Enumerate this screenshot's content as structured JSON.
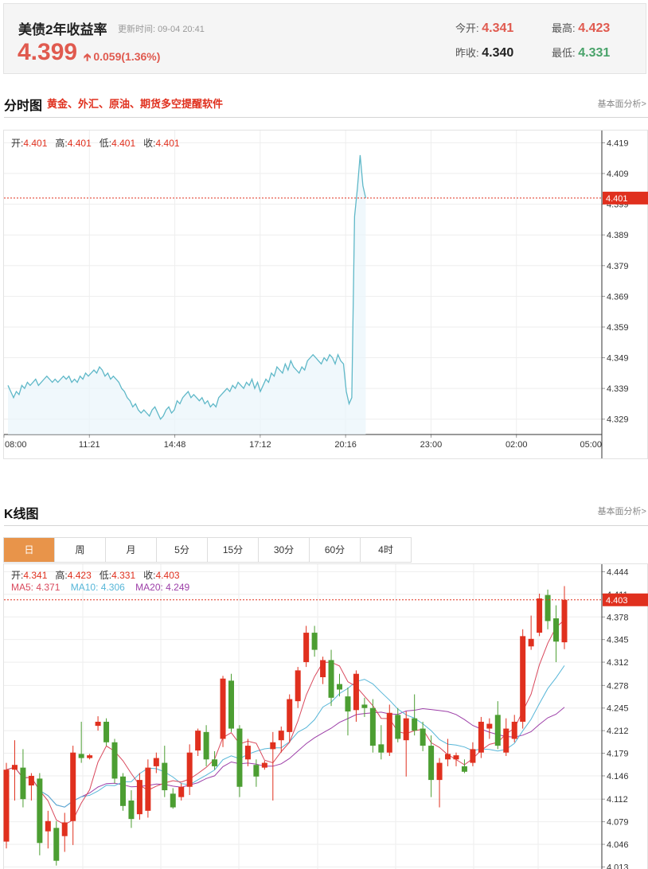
{
  "quote": {
    "name": "美债2年收益率",
    "update_label": "更新时间:",
    "update_time": "09-04 20:41",
    "price": "4.399",
    "change": "0.059(1.36%)",
    "today_open_label": "今开:",
    "today_open": "4.341",
    "high_label": "最高:",
    "high": "4.423",
    "prev_close_label": "昨收:",
    "prev_close": "4.340",
    "low_label": "最低:",
    "low": "4.331",
    "colors": {
      "up": "#e05a4f",
      "down": "#49a36a"
    }
  },
  "intraday": {
    "title": "分时图",
    "promo": "黄金、外汇、原油、期货多空提醒软件",
    "link": "基本面分析>",
    "ohlc": {
      "open_label": "开:",
      "open": "4.401",
      "high_label": "高:",
      "high": "4.401",
      "low_label": "低:",
      "low": "4.401",
      "close_label": "收:",
      "close": "4.401"
    }
  },
  "kline": {
    "title": "K线图",
    "link": "基本面分析>",
    "tabs": [
      "日",
      "周",
      "月",
      "5分",
      "15分",
      "30分",
      "60分",
      "4时"
    ],
    "active_tab": 0,
    "ohlc": {
      "open_label": "开:",
      "open": "4.341",
      "high_label": "高:",
      "high": "4.423",
      "low_label": "低:",
      "low": "4.331",
      "close_label": "收:",
      "close": "4.403"
    },
    "ma": {
      "ma5_label": "MA5:",
      "ma5": "4.371",
      "ma10_label": "MA10:",
      "ma10": "4.306",
      "ma20_label": "MA20:",
      "ma20": "4.249"
    }
  },
  "chart_data": [
    {
      "type": "line",
      "name": "intraday",
      "ylim": [
        4.324,
        4.423
      ],
      "yticks": [
        "4.419",
        "4.409",
        "4.399",
        "4.389",
        "4.379",
        "4.369",
        "4.359",
        "4.349",
        "4.339",
        "4.329"
      ],
      "yticks_values": [
        4.419,
        4.409,
        4.399,
        4.389,
        4.379,
        4.369,
        4.359,
        4.349,
        4.339,
        4.329
      ],
      "xticks": [
        "08:00",
        "11:21",
        "14:48",
        "17:12",
        "20:16",
        "23:00",
        "02:00",
        "05:00"
      ],
      "current_value": 4.401,
      "current_label": "4.401",
      "line_color": "#5fb8c8",
      "values": [
        4.34,
        4.338,
        4.336,
        4.338,
        4.337,
        4.34,
        4.339,
        4.341,
        4.34,
        4.341,
        4.342,
        4.34,
        4.341,
        4.342,
        4.343,
        4.342,
        4.341,
        4.342,
        4.341,
        4.342,
        4.343,
        4.342,
        4.343,
        4.341,
        4.342,
        4.341,
        4.343,
        4.342,
        4.344,
        4.343,
        4.344,
        4.345,
        4.344,
        4.346,
        4.345,
        4.343,
        4.344,
        4.342,
        4.343,
        4.342,
        4.341,
        4.339,
        4.338,
        4.336,
        4.335,
        4.333,
        4.334,
        4.332,
        4.331,
        4.332,
        4.331,
        4.33,
        4.332,
        4.333,
        4.331,
        4.329,
        4.33,
        4.332,
        4.333,
        4.331,
        4.332,
        4.335,
        4.334,
        4.336,
        4.337,
        4.338,
        4.336,
        4.337,
        4.336,
        4.335,
        4.336,
        4.334,
        4.335,
        4.333,
        4.334,
        4.333,
        4.336,
        4.337,
        4.338,
        4.339,
        4.338,
        4.34,
        4.339,
        4.341,
        4.34,
        4.339,
        4.341,
        4.34,
        4.342,
        4.339,
        4.341,
        4.338,
        4.34,
        4.342,
        4.341,
        4.344,
        4.343,
        4.346,
        4.345,
        4.344,
        4.347,
        4.345,
        4.348,
        4.346,
        4.345,
        4.344,
        4.346,
        4.345,
        4.348,
        4.349,
        4.35,
        4.349,
        4.348,
        4.347,
        4.349,
        4.348,
        4.35,
        4.349,
        4.347,
        4.35,
        4.348,
        4.347,
        4.338,
        4.334,
        4.336,
        4.395,
        4.404,
        4.415,
        4.405,
        4.401
      ],
      "x_fraction_span": [
        0.0,
        0.605
      ]
    },
    {
      "type": "candlestick",
      "name": "kline-daily",
      "ylim": [
        4.01,
        4.455
      ],
      "yticks": [
        "4.444",
        "4.411",
        "4.378",
        "4.345",
        "4.312",
        "4.278",
        "4.245",
        "4.212",
        "4.179",
        "4.146",
        "4.112",
        "4.079",
        "4.046",
        "4.013"
      ],
      "yticks_values": [
        4.444,
        4.411,
        4.378,
        4.345,
        4.312,
        4.278,
        4.245,
        4.212,
        4.179,
        4.146,
        4.112,
        4.079,
        4.046,
        4.013
      ],
      "current_value": 4.403,
      "current_label": "4.403",
      "ma_colors": {
        "ma5": "#d9485c",
        "ma10": "#57b6d8",
        "ma20": "#9d3fa8"
      },
      "candles": [
        {
          "o": 4.05,
          "h": 4.165,
          "l": 4.04,
          "c": 4.155
        },
        {
          "o": 4.155,
          "h": 4.198,
          "l": 4.11,
          "c": 4.162
        },
        {
          "o": 4.158,
          "h": 4.185,
          "l": 4.1,
          "c": 4.112
        },
        {
          "o": 4.132,
          "h": 4.15,
          "l": 4.11,
          "c": 4.146
        },
        {
          "o": 4.142,
          "h": 4.15,
          "l": 4.03,
          "c": 4.048
        },
        {
          "o": 4.065,
          "h": 4.095,
          "l": 4.04,
          "c": 4.08
        },
        {
          "o": 4.07,
          "h": 4.08,
          "l": 4.015,
          "c": 4.022
        },
        {
          "o": 4.058,
          "h": 4.092,
          "l": 4.035,
          "c": 4.078
        },
        {
          "o": 4.08,
          "h": 4.19,
          "l": 4.045,
          "c": 4.18
        },
        {
          "o": 4.178,
          "h": 4.225,
          "l": 4.165,
          "c": 4.172
        },
        {
          "o": 4.172,
          "h": 4.178,
          "l": 4.17,
          "c": 4.176
        },
        {
          "o": 4.219,
          "h": 4.233,
          "l": 4.212,
          "c": 4.225
        },
        {
          "o": 4.225,
          "h": 4.23,
          "l": 4.19,
          "c": 4.195
        },
        {
          "o": 4.195,
          "h": 4.2,
          "l": 4.135,
          "c": 4.142
        },
        {
          "o": 4.145,
          "h": 4.15,
          "l": 4.095,
          "c": 4.102
        },
        {
          "o": 4.11,
          "h": 4.125,
          "l": 4.07,
          "c": 4.083
        },
        {
          "o": 4.09,
          "h": 4.15,
          "l": 4.082,
          "c": 4.14
        },
        {
          "o": 4.095,
          "h": 4.17,
          "l": 4.085,
          "c": 4.158
        },
        {
          "o": 4.16,
          "h": 4.18,
          "l": 4.15,
          "c": 4.172
        },
        {
          "o": 4.165,
          "h": 4.19,
          "l": 4.115,
          "c": 4.125
        },
        {
          "o": 4.12,
          "h": 4.128,
          "l": 4.098,
          "c": 4.1
        },
        {
          "o": 4.115,
          "h": 4.135,
          "l": 4.11,
          "c": 4.13
        },
        {
          "o": 4.13,
          "h": 4.192,
          "l": 4.118,
          "c": 4.18
        },
        {
          "o": 4.183,
          "h": 4.215,
          "l": 4.175,
          "c": 4.212
        },
        {
          "o": 4.21,
          "h": 4.22,
          "l": 4.16,
          "c": 4.17
        },
        {
          "o": 4.17,
          "h": 4.182,
          "l": 4.155,
          "c": 4.16
        },
        {
          "o": 4.2,
          "h": 4.292,
          "l": 4.188,
          "c": 4.288
        },
        {
          "o": 4.285,
          "h": 4.295,
          "l": 4.21,
          "c": 4.215
        },
        {
          "o": 4.215,
          "h": 4.22,
          "l": 4.115,
          "c": 4.13
        },
        {
          "o": 4.17,
          "h": 4.2,
          "l": 4.16,
          "c": 4.19
        },
        {
          "o": 4.162,
          "h": 4.17,
          "l": 4.13,
          "c": 4.145
        },
        {
          "o": 4.158,
          "h": 4.168,
          "l": 4.155,
          "c": 4.165
        },
        {
          "o": 4.185,
          "h": 4.21,
          "l": 4.11,
          "c": 4.195
        },
        {
          "o": 4.198,
          "h": 4.218,
          "l": 4.18,
          "c": 4.212
        },
        {
          "o": 4.21,
          "h": 4.265,
          "l": 4.195,
          "c": 4.258
        },
        {
          "o": 4.255,
          "h": 4.305,
          "l": 4.245,
          "c": 4.3
        },
        {
          "o": 4.312,
          "h": 4.365,
          "l": 4.305,
          "c": 4.355
        },
        {
          "o": 4.355,
          "h": 4.365,
          "l": 4.32,
          "c": 4.33
        },
        {
          "o": 4.29,
          "h": 4.32,
          "l": 4.28,
          "c": 4.315
        },
        {
          "o": 4.315,
          "h": 4.33,
          "l": 4.248,
          "c": 4.26
        },
        {
          "o": 4.28,
          "h": 4.295,
          "l": 4.262,
          "c": 4.272
        },
        {
          "o": 4.262,
          "h": 4.275,
          "l": 4.205,
          "c": 4.24
        },
        {
          "o": 4.242,
          "h": 4.3,
          "l": 4.225,
          "c": 4.295
        },
        {
          "o": 4.25,
          "h": 4.26,
          "l": 4.232,
          "c": 4.245
        },
        {
          "o": 4.245,
          "h": 4.258,
          "l": 4.18,
          "c": 4.19
        },
        {
          "o": 4.192,
          "h": 4.22,
          "l": 4.17,
          "c": 4.18
        },
        {
          "o": 4.18,
          "h": 4.25,
          "l": 4.175,
          "c": 4.238
        },
        {
          "o": 4.235,
          "h": 4.245,
          "l": 4.195,
          "c": 4.2
        },
        {
          "o": 4.198,
          "h": 4.24,
          "l": 4.145,
          "c": 4.23
        },
        {
          "o": 4.23,
          "h": 4.265,
          "l": 4.205,
          "c": 4.212
        },
        {
          "o": 4.215,
          "h": 4.225,
          "l": 4.182,
          "c": 4.19
        },
        {
          "o": 4.19,
          "h": 4.205,
          "l": 4.115,
          "c": 4.14
        },
        {
          "o": 4.14,
          "h": 4.172,
          "l": 4.1,
          "c": 4.165
        },
        {
          "o": 4.17,
          "h": 4.2,
          "l": 4.16,
          "c": 4.178
        },
        {
          "o": 4.17,
          "h": 4.18,
          "l": 4.16,
          "c": 4.176
        },
        {
          "o": 4.16,
          "h": 4.17,
          "l": 4.15,
          "c": 4.152
        },
        {
          "o": 4.165,
          "h": 4.195,
          "l": 4.16,
          "c": 4.185
        },
        {
          "o": 4.18,
          "h": 4.232,
          "l": 4.172,
          "c": 4.225
        },
        {
          "o": 4.215,
          "h": 4.23,
          "l": 4.2,
          "c": 4.222
        },
        {
          "o": 4.235,
          "h": 4.255,
          "l": 4.185,
          "c": 4.19
        },
        {
          "o": 4.18,
          "h": 4.23,
          "l": 4.175,
          "c": 4.215
        },
        {
          "o": 4.2,
          "h": 4.235,
          "l": 4.195,
          "c": 4.225
        },
        {
          "o": 4.225,
          "h": 4.36,
          "l": 4.215,
          "c": 4.35
        },
        {
          "o": 4.335,
          "h": 4.38,
          "l": 4.33,
          "c": 4.346
        },
        {
          "o": 4.355,
          "h": 4.412,
          "l": 4.35,
          "c": 4.405
        },
        {
          "o": 4.41,
          "h": 4.418,
          "l": 4.36,
          "c": 4.372
        },
        {
          "o": 4.376,
          "h": 4.395,
          "l": 4.312,
          "c": 4.342
        },
        {
          "o": 4.341,
          "h": 4.423,
          "l": 4.331,
          "c": 4.403
        }
      ]
    }
  ]
}
